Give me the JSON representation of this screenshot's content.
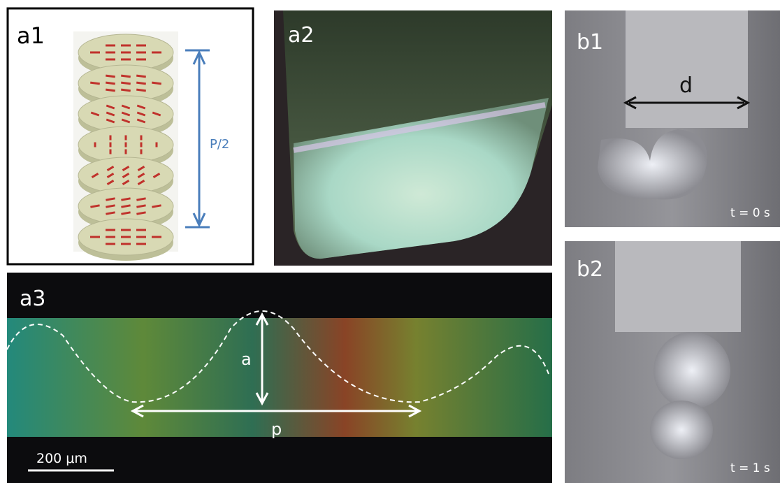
{
  "panels": {
    "a1": {
      "label": "a1",
      "annotation": "P/2"
    },
    "a2": {
      "label": "a2"
    },
    "b1": {
      "label": "b1",
      "annotation": "d",
      "time": "t = 0 s"
    },
    "b2": {
      "label": "b2",
      "time": "t = 1 s"
    },
    "a3": {
      "label": "a3",
      "amplitude": "a",
      "period": "p",
      "scale_bar": "200 μm"
    }
  }
}
